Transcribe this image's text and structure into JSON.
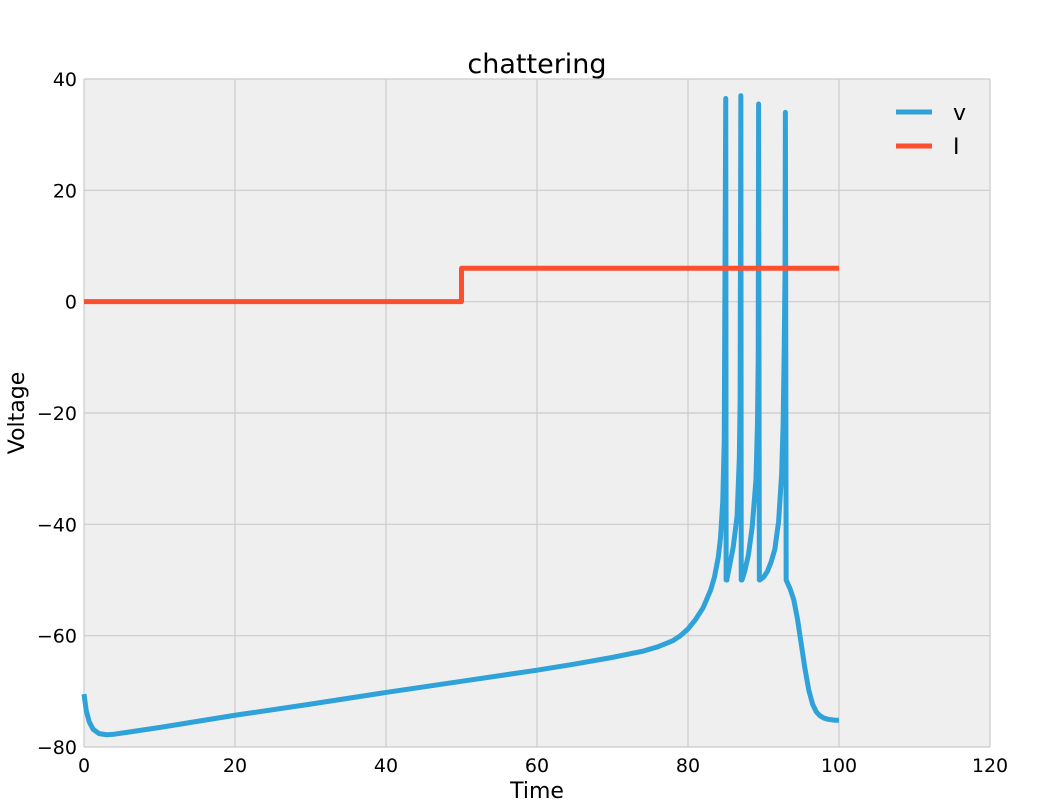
{
  "chart_data": {
    "type": "line",
    "title": "chattering",
    "xlabel": "Time",
    "ylabel": "Voltage",
    "xlim": [
      0,
      120
    ],
    "ylim": [
      -80,
      40
    ],
    "xticks": [
      0,
      20,
      40,
      60,
      80,
      100,
      120
    ],
    "yticks": [
      -80,
      -60,
      -40,
      -20,
      0,
      20,
      40
    ],
    "xtick_labels": [
      "0",
      "20",
      "40",
      "60",
      "80",
      "100",
      "120"
    ],
    "ytick_labels": [
      "−80",
      "−60",
      "−40",
      "−20",
      "0",
      "20",
      "40"
    ],
    "grid": true,
    "legend_position": "top-right",
    "background_color": "#efefef",
    "grid_color": "#cbcbcb",
    "series": [
      {
        "name": "v",
        "color": "#30a2da",
        "x": [
          0,
          0.3,
          0.7,
          1.2,
          2,
          3,
          4,
          6,
          10,
          20,
          30,
          40,
          50,
          60,
          65,
          70,
          74,
          76,
          78,
          79,
          80,
          81,
          82,
          83,
          83.5,
          84,
          84.3,
          84.6,
          84.8,
          85,
          85.05,
          85.15,
          85.2,
          85.5,
          86,
          86.5,
          86.8,
          86.9,
          87,
          87.05,
          87.15,
          87.2,
          87.5,
          88,
          88.5,
          89,
          89.2,
          89.3,
          89.35,
          89.45,
          89.5,
          90,
          90.5,
          91,
          91.5,
          92,
          92.4,
          92.6,
          92.75,
          92.85,
          92.9,
          93.0,
          93.1,
          93.5,
          94,
          94.5,
          95,
          95.5,
          96,
          96.5,
          97,
          97.5,
          98,
          98.5,
          99,
          99.5,
          100
        ],
        "values": [
          -70.5,
          -73.5,
          -75.5,
          -76.8,
          -77.6,
          -77.8,
          -77.7,
          -77.3,
          -76.5,
          -74.3,
          -72.3,
          -70.2,
          -68.2,
          -66.2,
          -65.1,
          -63.9,
          -62.8,
          -62.0,
          -60.9,
          -60.0,
          -58.8,
          -57.1,
          -55.0,
          -51.8,
          -49.5,
          -46.0,
          -42.5,
          -36.0,
          -25.0,
          36.5,
          -50,
          -50,
          -49.5,
          -47.5,
          -44.0,
          -38.5,
          -28.0,
          -18.0,
          37.0,
          -50,
          -50,
          -49.8,
          -48.5,
          -45.5,
          -40.5,
          -32.0,
          -22.0,
          -10.0,
          35.5,
          -50,
          -50,
          -49.5,
          -48.5,
          -46.8,
          -44.5,
          -39.5,
          -31.0,
          -22.0,
          -8.0,
          5.0,
          34.0,
          -50.0,
          -50.3,
          -51.5,
          -53.5,
          -57.0,
          -61.5,
          -66.0,
          -69.8,
          -72.3,
          -73.7,
          -74.4,
          -74.8,
          -75.0,
          -75.1,
          -75.2,
          -75.2
        ]
      },
      {
        "name": "I",
        "color": "#fc4f30",
        "x": [
          0,
          50,
          50,
          100
        ],
        "values": [
          0,
          0,
          6,
          6
        ]
      }
    ]
  }
}
